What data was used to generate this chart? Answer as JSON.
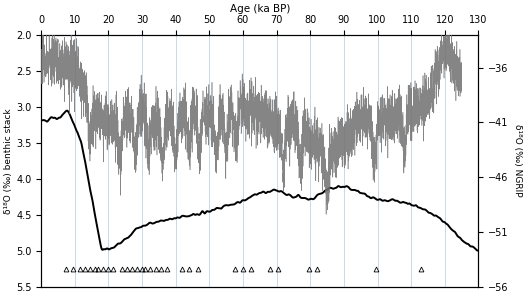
{
  "title": "Age (ka BP)",
  "xlim": [
    0,
    130
  ],
  "ylim_left": [
    5.5,
    2.0
  ],
  "ylim_right": [
    -56,
    -33
  ],
  "yticks_left": [
    2,
    2.5,
    3,
    3.5,
    4,
    4.5,
    5,
    5.5
  ],
  "yticks_right": [
    -36,
    -41,
    -46,
    -51,
    -56
  ],
  "xticks": [
    0,
    10,
    20,
    30,
    40,
    50,
    60,
    70,
    80,
    90,
    100,
    110,
    120,
    130
  ],
  "ylabel_left": "δ¹⁸O (‰) benthic stack",
  "ylabel_right": "δ¹⁸O (‰) NGRIP",
  "grid_color": "#c8d8e8",
  "background_color": "#ffffff",
  "triangle_positions": [
    7.5,
    9.5,
    11.5,
    13.0,
    14.5,
    16.0,
    17.0,
    18.5,
    20.0,
    21.5,
    24.0,
    25.5,
    27.0,
    28.5,
    30.0,
    31.0,
    32.5,
    34.0,
    35.5,
    37.5,
    42.0,
    44.0,
    46.5,
    57.5,
    60.0,
    62.5,
    68.0,
    70.5,
    79.5,
    82.0,
    99.5,
    113.0
  ],
  "benthic_keypoints_age": [
    0,
    5,
    8,
    12,
    18,
    22,
    30,
    40,
    50,
    60,
    65,
    70,
    75,
    80,
    85,
    90,
    95,
    100,
    105,
    110,
    115,
    120,
    125,
    130
  ],
  "benthic_keypoints_val": [
    3.2,
    3.15,
    3.05,
    3.5,
    5.0,
    4.95,
    4.65,
    4.55,
    4.45,
    4.3,
    4.2,
    4.15,
    4.25,
    4.3,
    4.15,
    4.1,
    4.2,
    4.3,
    4.3,
    4.35,
    4.45,
    4.6,
    4.85,
    5.0
  ],
  "ngrip_mean_keypoints_age": [
    0,
    5,
    11,
    12,
    15,
    20,
    25,
    30,
    35,
    40,
    45,
    50,
    55,
    60,
    65,
    70,
    75,
    80,
    85,
    90,
    95,
    100,
    105,
    110,
    115,
    119,
    121,
    125
  ],
  "ngrip_mean_keypoints_val": [
    -35.5,
    -35.5,
    -35.8,
    -37.5,
    -39.5,
    -41.5,
    -40.5,
    -40.0,
    -41.0,
    -40.5,
    -40.0,
    -40.5,
    -40.0,
    -39.5,
    -40.5,
    -41.5,
    -41.0,
    -42.5,
    -44.0,
    -43.0,
    -40.5,
    -41.0,
    -40.5,
    -40.0,
    -39.0,
    -35.0,
    -34.2,
    -37.5
  ]
}
